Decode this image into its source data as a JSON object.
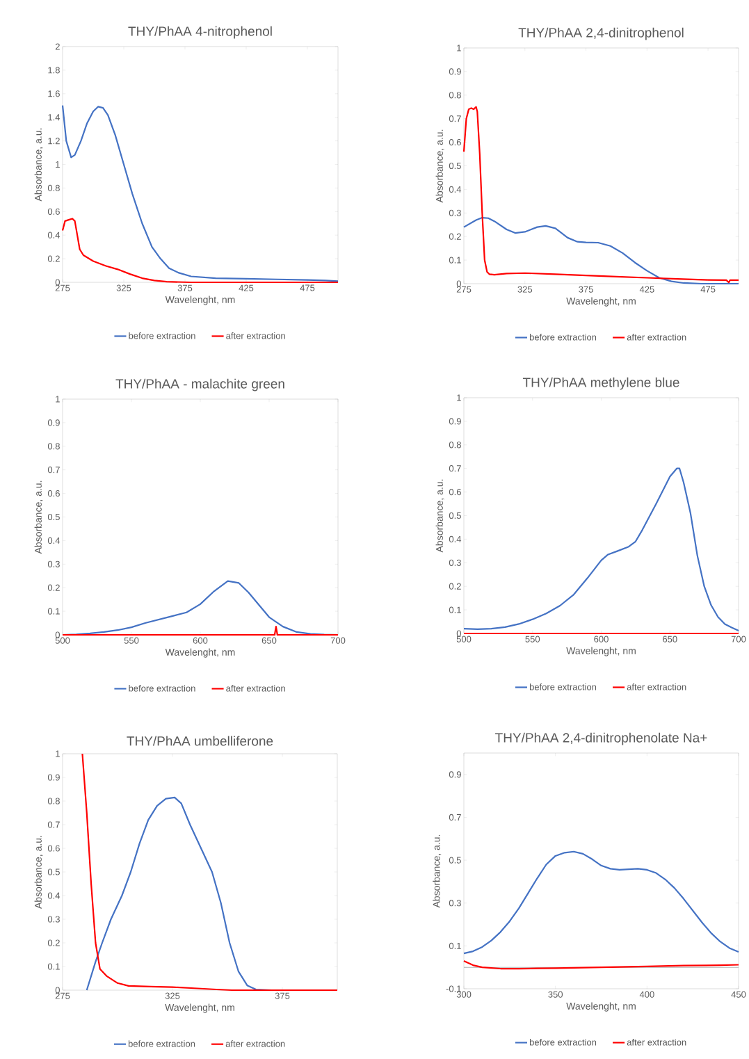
{
  "chart_data": [
    {
      "type": "line",
      "title": "THY/PhAA 4-nitrophenol",
      "xlabel": "Wavelenght, nm",
      "ylabel": "Absorbance, a.u.",
      "xlim": [
        275,
        500
      ],
      "xticks": [
        275,
        325,
        375,
        425,
        475
      ],
      "ylim": [
        0,
        2
      ],
      "yticks": [
        0,
        0.2,
        0.4,
        0.6,
        0.8,
        1,
        1.2,
        1.4,
        1.6,
        1.8,
        2
      ],
      "legend": "bottom",
      "series": [
        {
          "name": "before extraction",
          "color": "#4472c4",
          "x": [
            275,
            278,
            282,
            285,
            290,
            295,
            300,
            304,
            308,
            312,
            318,
            325,
            332,
            340,
            348,
            355,
            362,
            370,
            380,
            400,
            425,
            450,
            475,
            490,
            500
          ],
          "values": [
            1.5,
            1.2,
            1.06,
            1.08,
            1.2,
            1.35,
            1.45,
            1.49,
            1.48,
            1.42,
            1.25,
            1.0,
            0.75,
            0.5,
            0.3,
            0.2,
            0.12,
            0.08,
            0.05,
            0.035,
            0.03,
            0.025,
            0.02,
            0.015,
            0.01
          ]
        },
        {
          "name": "after extraction",
          "color": "#ff0000",
          "x": [
            275,
            277,
            280,
            283,
            285,
            287,
            289,
            292,
            300,
            310,
            320,
            330,
            340,
            350,
            360,
            380,
            500
          ],
          "values": [
            0.44,
            0.52,
            0.53,
            0.54,
            0.52,
            0.4,
            0.28,
            0.23,
            0.18,
            0.14,
            0.11,
            0.07,
            0.035,
            0.015,
            0.005,
            0,
            0
          ]
        }
      ]
    },
    {
      "type": "line",
      "title": "THY/PhAA 2,4-dinitrophenol",
      "xlabel": "Wavelenght, nm",
      "ylabel": "Absorbance, a.u.",
      "xlim": [
        275,
        500
      ],
      "xticks": [
        275,
        325,
        375,
        425,
        475
      ],
      "ylim": [
        0,
        1
      ],
      "yticks": [
        0,
        0.1,
        0.2,
        0.3,
        0.4,
        0.5,
        0.6,
        0.7,
        0.8,
        0.9,
        1
      ],
      "legend": "bottom",
      "series": [
        {
          "name": "before extraction",
          "color": "#4472c4",
          "x": [
            275,
            280,
            285,
            290,
            295,
            300,
            310,
            317,
            325,
            335,
            342,
            350,
            360,
            368,
            375,
            385,
            395,
            405,
            415,
            425,
            435,
            445,
            455,
            470,
            500
          ],
          "values": [
            0.24,
            0.255,
            0.27,
            0.28,
            0.278,
            0.265,
            0.23,
            0.215,
            0.22,
            0.24,
            0.245,
            0.235,
            0.195,
            0.178,
            0.175,
            0.174,
            0.16,
            0.13,
            0.09,
            0.055,
            0.025,
            0.01,
            0.003,
            0,
            0
          ]
        },
        {
          "name": "after extraction",
          "color": "#ff0000",
          "x": [
            275,
            277,
            279,
            281,
            283,
            285,
            286,
            288,
            290,
            292,
            294,
            296,
            300,
            310,
            325,
            350,
            375,
            400,
            425,
            450,
            475,
            490,
            492,
            493,
            500
          ],
          "values": [
            0.56,
            0.7,
            0.74,
            0.745,
            0.74,
            0.75,
            0.73,
            0.55,
            0.3,
            0.1,
            0.05,
            0.04,
            0.038,
            0.043,
            0.045,
            0.04,
            0.035,
            0.03,
            0.025,
            0.02,
            0.016,
            0.015,
            0.005,
            0.015,
            0.015
          ]
        }
      ]
    },
    {
      "type": "line",
      "title": "THY/PhAA - malachite green",
      "xlabel": "Wavelenght, nm",
      "ylabel": "Absorbance, a.u.",
      "xlim": [
        500,
        700
      ],
      "xticks": [
        500,
        550,
        600,
        650,
        700
      ],
      "ylim": [
        0,
        1
      ],
      "yticks": [
        0,
        0.1,
        0.2,
        0.3,
        0.4,
        0.5,
        0.6,
        0.7,
        0.8,
        0.9,
        1
      ],
      "legend": "bottom",
      "series": [
        {
          "name": "before extraction",
          "color": "#4472c4",
          "x": [
            500,
            510,
            520,
            530,
            540,
            550,
            560,
            570,
            580,
            590,
            600,
            610,
            620,
            628,
            635,
            645,
            650,
            655,
            660,
            670,
            680,
            690,
            700
          ],
          "values": [
            0,
            0.002,
            0.006,
            0.012,
            0.02,
            0.032,
            0.05,
            0.065,
            0.08,
            0.095,
            0.13,
            0.185,
            0.228,
            0.22,
            0.18,
            0.11,
            0.075,
            0.055,
            0.035,
            0.012,
            0.004,
            0.001,
            0
          ]
        },
        {
          "name": "after extraction",
          "color": "#ff0000",
          "x": [
            500,
            550,
            600,
            650,
            654,
            655,
            656,
            700
          ],
          "values": [
            0,
            0,
            0,
            0,
            0,
            0.035,
            0,
            0
          ]
        }
      ]
    },
    {
      "type": "line",
      "title": "THY/PhAA methylene blue",
      "xlabel": "Wavelenght, nm",
      "ylabel": "Absorbance, a.u.",
      "xlim": [
        500,
        700
      ],
      "xticks": [
        500,
        550,
        600,
        650,
        700
      ],
      "ylim": [
        0,
        1
      ],
      "yticks": [
        0,
        0.1,
        0.2,
        0.3,
        0.4,
        0.5,
        0.6,
        0.7,
        0.8,
        0.9,
        1
      ],
      "legend": "bottom",
      "series": [
        {
          "name": "before extraction",
          "color": "#4472c4",
          "x": [
            500,
            510,
            520,
            530,
            540,
            550,
            560,
            570,
            580,
            590,
            600,
            605,
            612,
            620,
            625,
            630,
            640,
            650,
            655,
            657,
            660,
            665,
            670,
            675,
            680,
            685,
            690,
            695,
            700
          ],
          "values": [
            0.02,
            0.018,
            0.02,
            0.027,
            0.04,
            0.06,
            0.085,
            0.118,
            0.165,
            0.235,
            0.31,
            0.335,
            0.35,
            0.368,
            0.39,
            0.44,
            0.55,
            0.665,
            0.7,
            0.7,
            0.64,
            0.51,
            0.33,
            0.2,
            0.12,
            0.07,
            0.04,
            0.025,
            0.012
          ]
        },
        {
          "name": "after extraction",
          "color": "#ff0000",
          "x": [
            500,
            600,
            700
          ],
          "values": [
            0,
            0,
            0
          ]
        }
      ]
    },
    {
      "type": "line",
      "title": "THY/PhAA umbelliferone",
      "xlabel": "Wavelenght, nm",
      "ylabel": "Absorbance, a.u.",
      "xlim": [
        275,
        400
      ],
      "xticks": [
        275,
        325,
        375
      ],
      "ylim": [
        0,
        1
      ],
      "yticks": [
        0,
        0.1,
        0.2,
        0.3,
        0.4,
        0.5,
        0.6,
        0.7,
        0.8,
        0.9,
        1
      ],
      "legend": "bottom",
      "series": [
        {
          "name": "before extraction",
          "color": "#4472c4",
          "x": [
            286,
            290,
            293,
            297,
            302,
            306,
            310,
            314,
            318,
            322,
            326,
            329,
            333,
            338,
            343,
            347,
            351,
            355,
            359,
            363,
            370,
            400
          ],
          "values": [
            0,
            0.12,
            0.2,
            0.3,
            0.4,
            0.5,
            0.62,
            0.72,
            0.78,
            0.81,
            0.815,
            0.79,
            0.7,
            0.6,
            0.5,
            0.37,
            0.2,
            0.08,
            0.02,
            0.003,
            0,
            0
          ]
        },
        {
          "name": "after extraction",
          "color": "#ff0000",
          "x": [
            284,
            286,
            288,
            290,
            292,
            295,
            300,
            305,
            315,
            325,
            335,
            345,
            352,
            400
          ],
          "values": [
            1,
            0.75,
            0.45,
            0.2,
            0.09,
            0.06,
            0.03,
            0.018,
            0.015,
            0.013,
            0.008,
            0.003,
            0,
            0
          ]
        }
      ]
    },
    {
      "type": "line",
      "title": "THY/PhAA 2,4-dinitrophenolate Na+",
      "xlabel": "Wavelenght, nm",
      "ylabel": "Absorbance, a.u.",
      "xlim": [
        300,
        450
      ],
      "xticks": [
        300,
        350,
        400,
        450
      ],
      "ylim": [
        -0.1,
        1
      ],
      "yticks": [
        -0.1,
        {
          "value": 0,
          "label": null
        },
        0.1,
        0.3,
        0.5,
        0.7,
        0.9
      ],
      "legend": "bottom",
      "series": [
        {
          "name": "before extraction",
          "color": "#4472c4",
          "x": [
            300,
            305,
            310,
            315,
            320,
            325,
            330,
            335,
            340,
            345,
            350,
            355,
            360,
            365,
            370,
            375,
            380,
            385,
            390,
            395,
            400,
            405,
            410,
            415,
            420,
            425,
            430,
            435,
            440,
            445,
            450
          ],
          "values": [
            0.065,
            0.075,
            0.095,
            0.125,
            0.165,
            0.215,
            0.275,
            0.345,
            0.415,
            0.48,
            0.52,
            0.535,
            0.54,
            0.53,
            0.505,
            0.475,
            0.46,
            0.455,
            0.458,
            0.46,
            0.455,
            0.44,
            0.41,
            0.37,
            0.32,
            0.265,
            0.21,
            0.16,
            0.12,
            0.09,
            0.072
          ]
        },
        {
          "name": "after extraction",
          "color": "#ff0000",
          "x": [
            300,
            305,
            310,
            320,
            330,
            340,
            350,
            360,
            380,
            400,
            420,
            440,
            450
          ],
          "values": [
            0.03,
            0.01,
            0,
            -0.006,
            -0.006,
            -0.005,
            -0.004,
            -0.002,
            0.001,
            0.004,
            0.008,
            0.01,
            0.012
          ]
        }
      ]
    }
  ]
}
